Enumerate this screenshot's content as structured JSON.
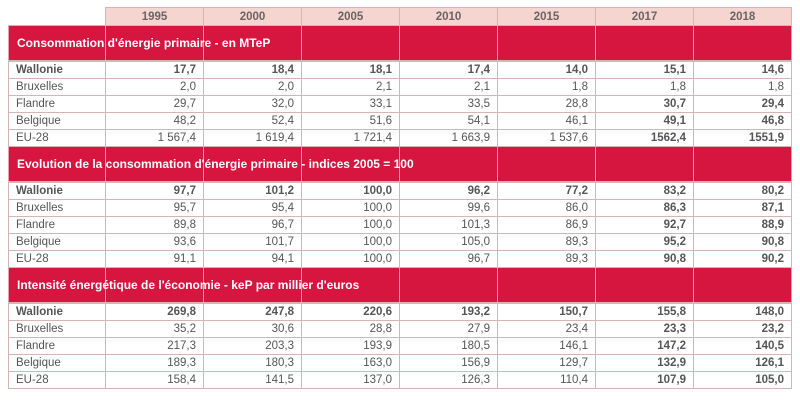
{
  "years": [
    "1995",
    "2000",
    "2005",
    "2010",
    "2015",
    "2017",
    "2018"
  ],
  "sections": [
    {
      "title": "Consommation d'énergie primaire - en MTeP",
      "rows": [
        {
          "name": "Wallonie",
          "values": [
            "17,7",
            "18,4",
            "18,1",
            "17,4",
            "14,0",
            "15,1",
            "14,6"
          ]
        },
        {
          "name": "Bruxelles",
          "values": [
            "2,0",
            "2,0",
            "2,1",
            "2,1",
            "1,8",
            "1,8",
            "1,8"
          ]
        },
        {
          "name": "Flandre",
          "values": [
            "29,7",
            "32,0",
            "33,1",
            "33,5",
            "28,8",
            "30,7",
            "29,4"
          ]
        },
        {
          "name": "Belgique",
          "values": [
            "48,2",
            "52,4",
            "51,6",
            "54,1",
            "46,1",
            "49,1",
            "46,8"
          ]
        },
        {
          "name": "EU-28",
          "values": [
            "1 567,4",
            "1 619,4",
            "1 721,4",
            "1 663,9",
            "1 537,6",
            "1562,4",
            "1551,9"
          ]
        }
      ]
    },
    {
      "title": "Evolution de la consommation d'énergie primaire - indices 2005 = 100",
      "rows": [
        {
          "name": "Wallonie",
          "values": [
            "97,7",
            "101,2",
            "100,0",
            "96,2",
            "77,2",
            "83,2",
            "80,2"
          ]
        },
        {
          "name": "Bruxelles",
          "values": [
            "95,7",
            "95,4",
            "100,0",
            "99,6",
            "86,0",
            "86,3",
            "87,1"
          ]
        },
        {
          "name": "Flandre",
          "values": [
            "89,8",
            "96,7",
            "100,0",
            "101,3",
            "86,9",
            "92,7",
            "88,9"
          ]
        },
        {
          "name": "Belgique",
          "values": [
            "93,6",
            "101,7",
            "100,0",
            "105,0",
            "89,3",
            "95,2",
            "90,8"
          ]
        },
        {
          "name": "EU-28",
          "values": [
            "91,1",
            "94,1",
            "100,0",
            "96,7",
            "89,3",
            "90,8",
            "90,2"
          ]
        }
      ]
    },
    {
      "title": "Intensité énergétique de l'économie - keP par millier d'euros",
      "rows": [
        {
          "name": "Wallonie",
          "values": [
            "269,8",
            "247,8",
            "220,6",
            "193,2",
            "150,7",
            "155,8",
            "148,0"
          ]
        },
        {
          "name": "Bruxelles",
          "values": [
            "35,2",
            "30,6",
            "28,8",
            "27,9",
            "23,4",
            "23,3",
            "23,2"
          ]
        },
        {
          "name": "Flandre",
          "values": [
            "217,3",
            "203,3",
            "193,9",
            "180,5",
            "146,1",
            "147,2",
            "140,5"
          ]
        },
        {
          "name": "Belgique",
          "values": [
            "189,3",
            "180,3",
            "163,0",
            "156,9",
            "129,7",
            "132,9",
            "126,1"
          ]
        },
        {
          "name": "EU-28",
          "values": [
            "158,4",
            "141,5",
            "137,0",
            "126,3",
            "110,4",
            "107,9",
            "105,0"
          ]
        }
      ]
    }
  ]
}
